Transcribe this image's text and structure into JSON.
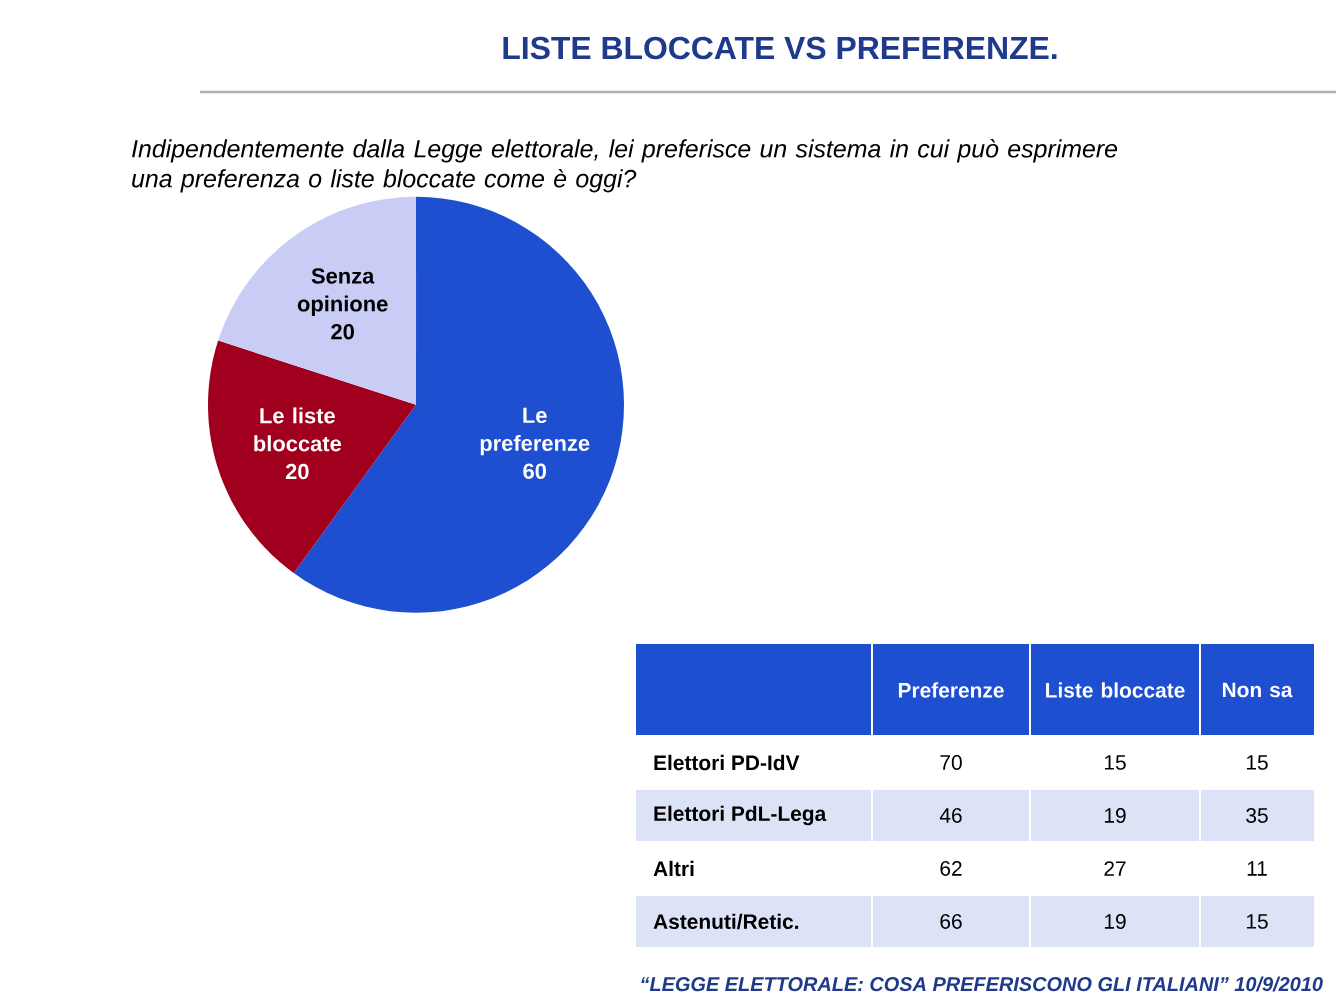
{
  "chart_data": [
    {
      "type": "pie",
      "title": "LISTE BLOCCATE VS PREFERENZE.",
      "subtitle": "Indipendentemente dalla Legge elettorale, lei preferisce un sistema in cui può esprimere una preferenza  o liste bloccate come è oggi?",
      "categories": [
        "Le preferenze",
        "Le liste bloccate",
        "Senza opinione"
      ],
      "values": [
        60,
        20,
        20
      ],
      "colors": [
        "#1f4fd1",
        "#a0001e",
        "#c9cdf5"
      ],
      "data_labels": true,
      "annotations": [
        "“LEGGE ELETTORALE: COSA PREFERISCONO GLI ITALIANI”    10/9/2010"
      ]
    },
    {
      "type": "heatmap",
      "categories": [
        "Preferenze",
        "Liste bloccate",
        "Non sa"
      ],
      "y_categories": [
        "Elettori PD-IdV",
        "Elettori PdL-Lega",
        "Altri",
        "Astenuti/Retic."
      ],
      "cells": [
        [
          70,
          15,
          15
        ],
        [
          46,
          19,
          35
        ],
        [
          62,
          27,
          11
        ],
        [
          66,
          19,
          15
        ]
      ],
      "data_labels": true
    }
  ]
}
